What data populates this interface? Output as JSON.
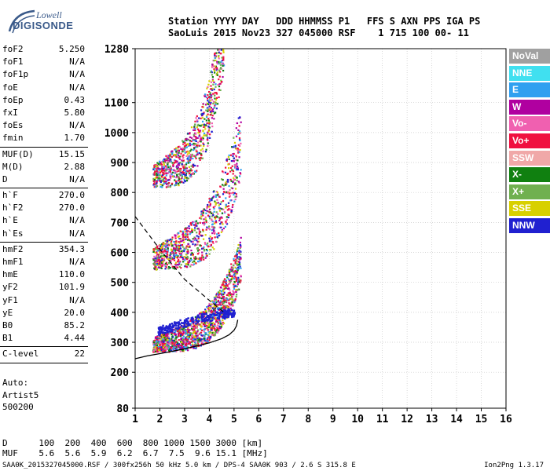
{
  "logo": {
    "line1": "Lowell",
    "line2": "DIGISONDE"
  },
  "header": {
    "line1": "Station YYYY DAY   DDD HHMMSS P1   FFS S AXN PPS IGA PS",
    "line2": "SaoLuis 2015 Nov23 327 045000 RSF    1 715 100 00- 11"
  },
  "params": [
    {
      "name": "foF2",
      "value": "5.250"
    },
    {
      "name": "foF1",
      "value": "N/A"
    },
    {
      "name": "foF1p",
      "value": "N/A"
    },
    {
      "name": "foE",
      "value": "N/A"
    },
    {
      "name": "foEp",
      "value": "0.43"
    },
    {
      "name": "fxI",
      "value": "5.80"
    },
    {
      "name": "foEs",
      "value": "N/A"
    },
    {
      "name": "fmin",
      "value": "1.70"
    },
    {
      "sep": true
    },
    {
      "name": "MUF(D)",
      "value": "15.15"
    },
    {
      "name": "M(D)",
      "value": "2.88"
    },
    {
      "name": "D",
      "value": "N/A"
    },
    {
      "sep": true
    },
    {
      "name": "h`F",
      "value": "270.0"
    },
    {
      "name": "h`F2",
      "value": "270.0"
    },
    {
      "name": "h`E",
      "value": "N/A"
    },
    {
      "name": "h`Es",
      "value": "N/A"
    },
    {
      "sep": true
    },
    {
      "name": "hmF2",
      "value": "354.3"
    },
    {
      "name": "hmF1",
      "value": "N/A"
    },
    {
      "name": "hmE",
      "value": "110.0"
    },
    {
      "name": "yF2",
      "value": "101.9"
    },
    {
      "name": "yF1",
      "value": "N/A"
    },
    {
      "name": "yE",
      "value": "20.0"
    },
    {
      "name": "B0",
      "value": "85.2"
    },
    {
      "name": "B1",
      "value": "4.44"
    },
    {
      "sep": true
    },
    {
      "name": "C-level",
      "value": "22"
    },
    {
      "sep": true
    }
  ],
  "auto": {
    "line1": "Auto:",
    "line2": "Artist5",
    "line3": "500200"
  },
  "legend": [
    {
      "label": "NoVal",
      "color": "#a0a0a0"
    },
    {
      "label": "NNE",
      "color": "#40e0f0"
    },
    {
      "label": "E",
      "color": "#30a0f0"
    },
    {
      "label": "W",
      "color": "#b000a0"
    },
    {
      "label": "Vo-",
      "color": "#f060b0"
    },
    {
      "label": "Vo+",
      "color": "#f01040"
    },
    {
      "label": "SSW",
      "color": "#f0a8a8"
    },
    {
      "label": "X-",
      "color": "#108010"
    },
    {
      "label": "X+",
      "color": "#70b050"
    },
    {
      "label": "SSE",
      "color": "#d8d000"
    },
    {
      "label": "NNW",
      "color": "#2020d0"
    }
  ],
  "muf_table": {
    "d_label": "D",
    "d_values": [
      "100",
      "200",
      "400",
      "600",
      "800",
      "1000",
      "1500",
      "3000"
    ],
    "d_unit": "[km]",
    "muf_label": "MUF",
    "muf_values": [
      "5.6",
      "5.6",
      "5.9",
      "6.2",
      "6.7",
      "7.5",
      "9.6",
      "15.1"
    ],
    "muf_unit": "[MHz]"
  },
  "footer": "SAA0K_2015327045000.RSF / 300fx256h 50 kHz 5.0 km / DPS-4 SAA0K 903 / 2.6 S 315.8 E",
  "version": "Ion2Png 1.3.17",
  "chart_data": {
    "type": "scatter",
    "xlim": [
      1,
      16
    ],
    "ylim": [
      80,
      1280
    ],
    "x_ticks": [
      "1",
      "2",
      "3",
      "4",
      "5",
      "6",
      "7",
      "8",
      "9",
      "10",
      "11",
      "12",
      "13",
      "14",
      "15",
      "16"
    ],
    "y_ticks": [
      "80",
      "200",
      "300",
      "400",
      "500",
      "600",
      "700",
      "800",
      "900",
      "1000",
      "1100",
      "1280"
    ],
    "y_tick_values": [
      80,
      200,
      300,
      400,
      500,
      600,
      700,
      800,
      900,
      1000,
      1100,
      1280
    ],
    "profile_curve": [
      [
        1.0,
        245
      ],
      [
        1.5,
        255
      ],
      [
        2.0,
        262
      ],
      [
        2.5,
        270
      ],
      [
        3.0,
        278
      ],
      [
        3.5,
        288
      ],
      [
        4.0,
        298
      ],
      [
        4.5,
        312
      ],
      [
        4.8,
        325
      ],
      [
        5.0,
        340
      ],
      [
        5.1,
        355
      ],
      [
        5.15,
        375
      ]
    ],
    "dashed_line": [
      [
        1.0,
        720
      ],
      [
        2.0,
        610
      ],
      [
        3.0,
        510
      ],
      [
        4.0,
        440
      ],
      [
        4.6,
        400
      ]
    ],
    "traces": [
      {
        "name": "F-trace",
        "x0": 1.7,
        "x1": 5.25,
        "hmin": 270,
        "hmax": 520
      },
      {
        "name": "2F-trace",
        "x0": 1.7,
        "x1": 5.25,
        "hmin": 545,
        "hmax": 880
      },
      {
        "name": "3F-trace",
        "x0": 1.7,
        "x1": 4.6,
        "hmin": 820,
        "hmax": 1280
      }
    ],
    "blue_band": [
      [
        1.9,
        340
      ],
      [
        2.5,
        355
      ],
      [
        3.5,
        380
      ],
      [
        4.5,
        395
      ],
      [
        5.0,
        405
      ]
    ]
  }
}
